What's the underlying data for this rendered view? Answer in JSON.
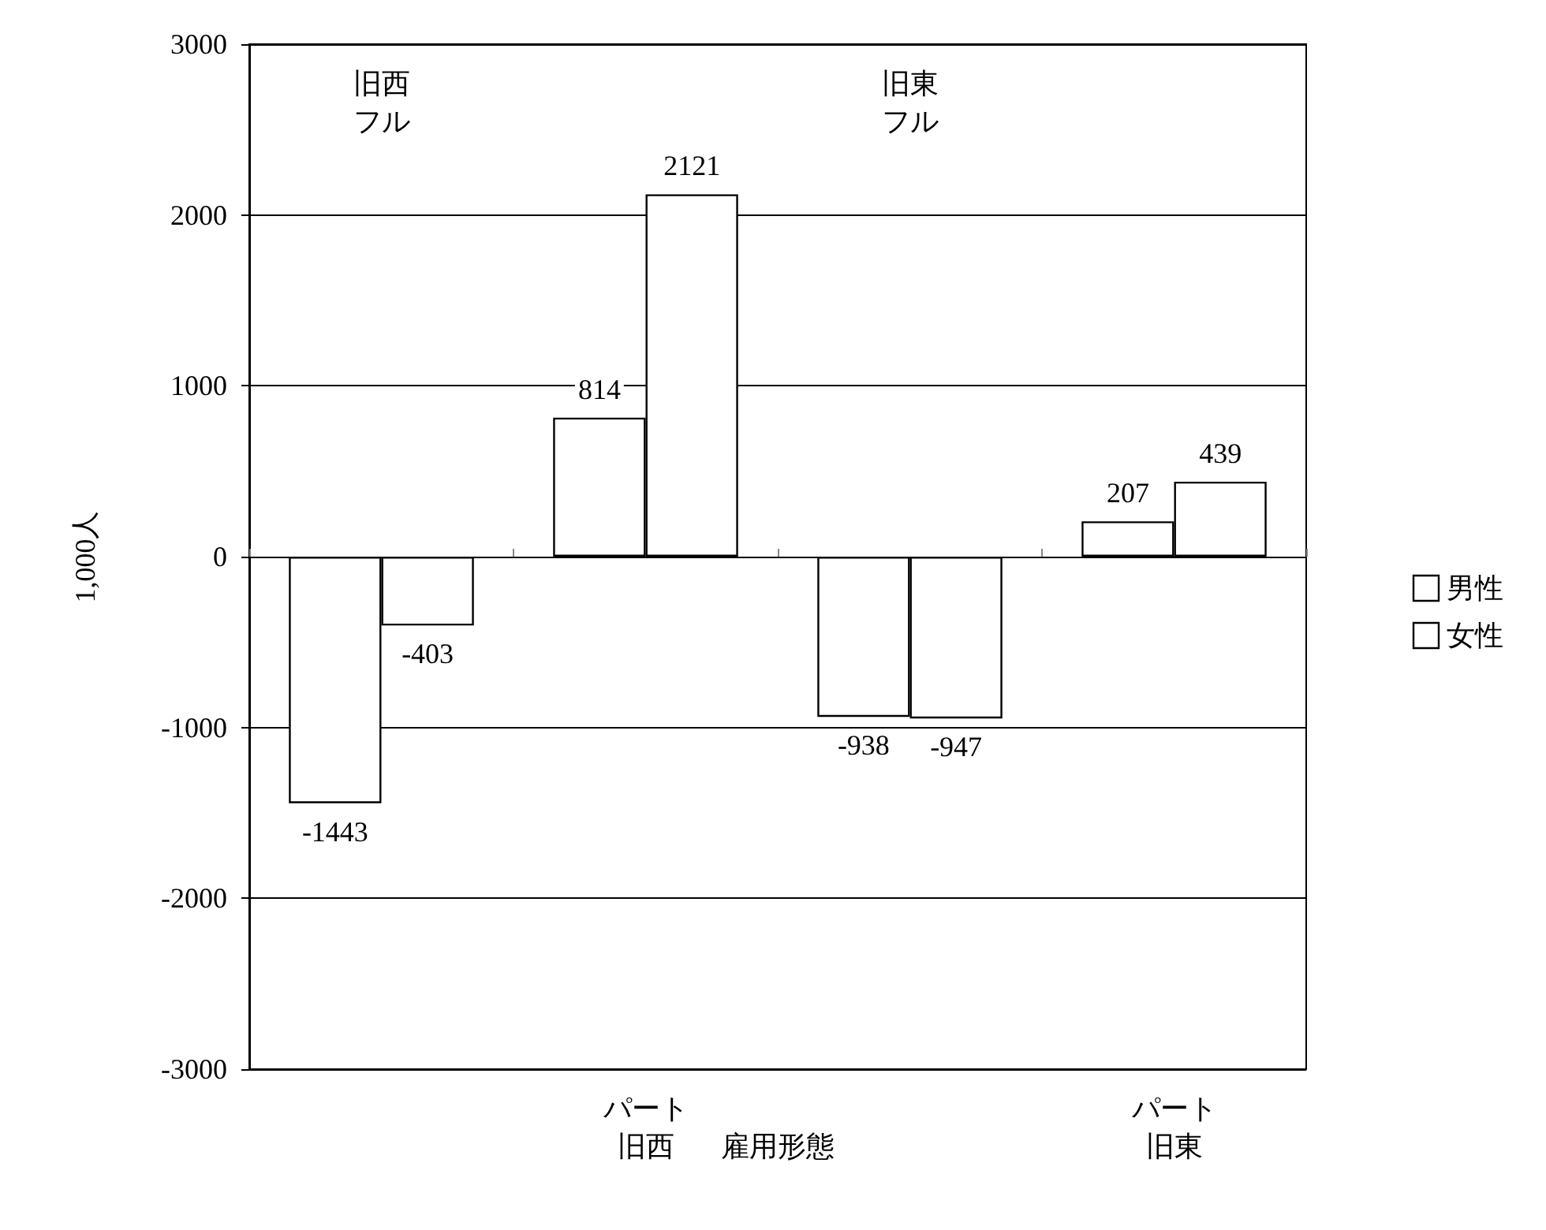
{
  "chart_data": {
    "type": "bar",
    "xlabel": "雇用形態",
    "ylabel": "1,000人",
    "categories": [
      "旧西フル",
      "パート旧西",
      "旧東フル",
      "パート旧東"
    ],
    "series": [
      {
        "name": "男性",
        "color": "#ffffff",
        "values": [
          -1443,
          814,
          -938,
          207
        ]
      },
      {
        "name": "女性",
        "color": "#ffffff",
        "values": [
          -403,
          2121,
          -947,
          439
        ]
      }
    ],
    "ylim": [
      -3000,
      3000
    ],
    "yticks": [
      -3000,
      -2000,
      -1000,
      0,
      1000,
      2000,
      3000
    ],
    "grid": "y",
    "legend": "right",
    "data_labels": true
  }
}
